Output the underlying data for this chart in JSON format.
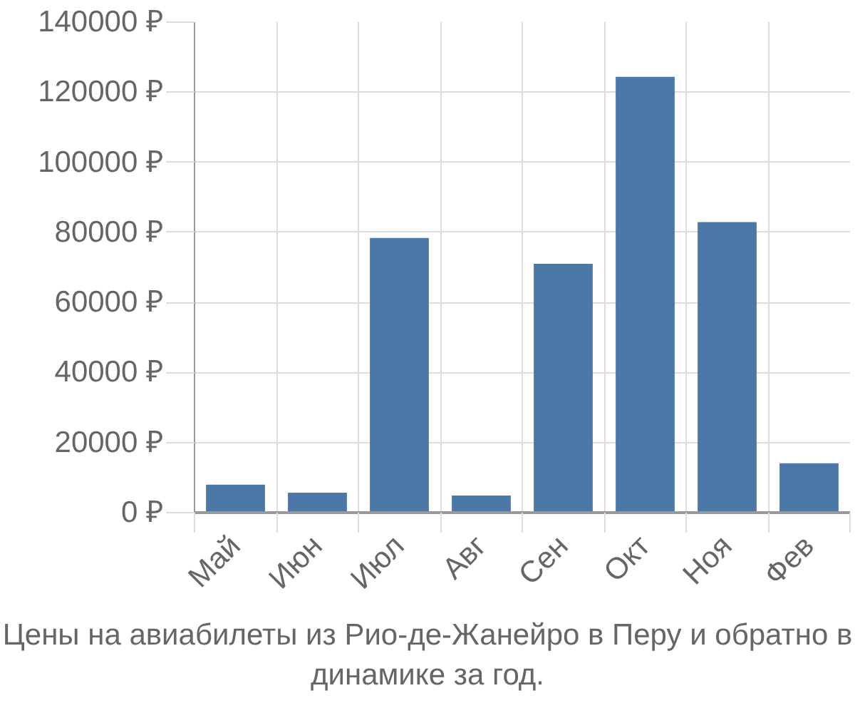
{
  "chart_data": {
    "type": "bar",
    "title": "Цены на авиабилеты из Рио-де-Жанейро в Перу и обратно в динамике за год.",
    "categories": [
      "Май",
      "Июн",
      "Июл",
      "Авг",
      "Сен",
      "Окт",
      "Ноя",
      "Фев"
    ],
    "values": [
      8000,
      5700,
      78400,
      4900,
      71000,
      124400,
      82900,
      14100
    ],
    "color": "#4c78a8",
    "ylim": [
      0,
      140000
    ],
    "yticks": [
      {
        "value": 0,
        "label": "0 ₽"
      },
      {
        "value": 20000,
        "label": "20000 ₽"
      },
      {
        "value": 40000,
        "label": "40000 ₽"
      },
      {
        "value": 60000,
        "label": "60000 ₽"
      },
      {
        "value": 80000,
        "label": "80000 ₽"
      },
      {
        "value": 100000,
        "label": "100000 ₽"
      },
      {
        "value": 120000,
        "label": "120000 ₽"
      },
      {
        "value": 140000,
        "label": "140000 ₽"
      }
    ],
    "grid": true
  }
}
